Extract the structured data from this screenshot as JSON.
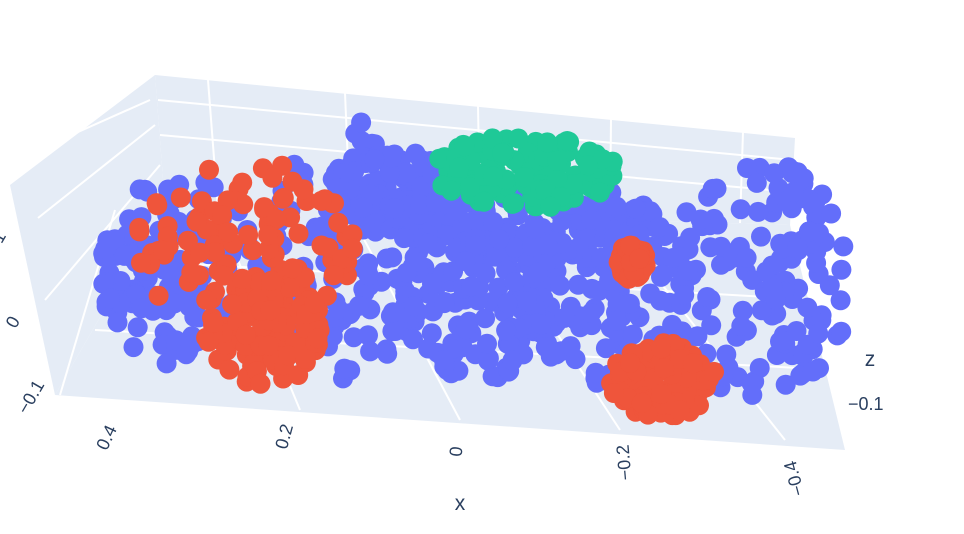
{
  "chart_data": {
    "type": "scatter3d",
    "title": "",
    "axes": {
      "x": {
        "title": "x",
        "ticks": [
          "0.4",
          "0.2",
          "0",
          "−0.2",
          "−0.4"
        ]
      },
      "y": {
        "title": "",
        "ticks": []
      },
      "z": {
        "title": "z",
        "ticks_left": [
          "0",
          "−0.1"
        ],
        "tick_right": "−0.1",
        "tick_partial": "1"
      }
    },
    "colors": {
      "blue": "#636efa",
      "red": "#ef553b",
      "green": "#1fc997",
      "plane": "#e5ecf6",
      "grid": "#ffffff",
      "text": "#2a3f5f"
    },
    "grid": true,
    "legend": "none",
    "clusters": [
      {
        "color": "blue",
        "point_count": 900
      },
      {
        "color": "red",
        "point_count": 420
      },
      {
        "color": "green",
        "point_count": 120
      }
    ]
  }
}
